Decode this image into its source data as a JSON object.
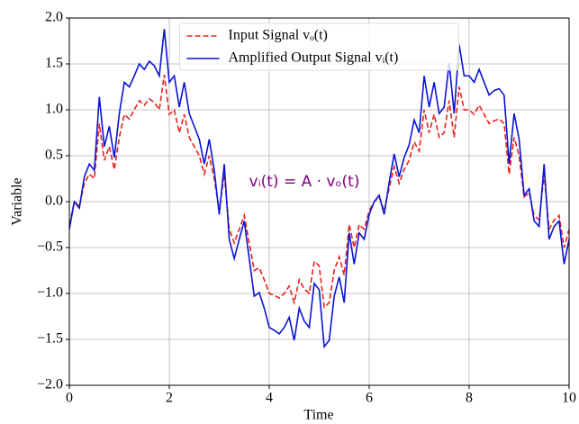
{
  "chart_data": {
    "type": "line",
    "xlabel": "Time",
    "ylabel": "Variable",
    "annotation": "vᵢ(t) = A · vₒ(t)",
    "annotation_color": "#800080",
    "x": [
      0,
      0.1,
      0.2,
      0.3,
      0.4,
      0.5,
      0.6,
      0.7,
      0.8,
      0.9,
      1,
      1.1,
      1.2,
      1.3,
      1.4,
      1.5,
      1.6,
      1.7,
      1.8,
      1.9,
      2,
      2.1,
      2.2,
      2.3,
      2.4,
      2.5,
      2.6,
      2.7,
      2.8,
      2.9,
      3,
      3.1,
      3.2,
      3.3,
      3.4,
      3.5,
      3.6,
      3.7,
      3.8,
      3.9,
      4,
      4.1,
      4.2,
      4.3,
      4.4,
      4.5,
      4.6,
      4.7,
      4.8,
      4.9,
      5,
      5.1,
      5.2,
      5.3,
      5.4,
      5.5,
      5.6,
      5.7,
      5.8,
      5.9,
      6,
      6.1,
      6.2,
      6.3,
      6.4,
      6.5,
      6.6,
      6.7,
      6.8,
      6.9,
      7,
      7.1,
      7.2,
      7.3,
      7.4,
      7.5,
      7.6,
      7.7,
      7.8,
      7.9,
      8,
      8.1,
      8.2,
      8.3,
      8.4,
      8.5,
      8.6,
      8.7,
      8.8,
      8.9,
      9,
      9.1,
      9.2,
      9.3,
      9.4,
      9.5,
      9.6,
      9.7,
      9.8,
      9.9,
      10
    ],
    "series": [
      {
        "name": "Input Signal vₒ(t)",
        "color": "#e8221b",
        "dash": "dashed",
        "values": [
          -0.25,
          0,
          -0.05,
          0.2,
          0.3,
          0.25,
          0.85,
          0.45,
          0.6,
          0.35,
          0.7,
          0.95,
          0.9,
          1,
          1.1,
          1.05,
          1.12,
          1.08,
          1,
          1.38,
          0.95,
          1,
          0.75,
          0.95,
          0.7,
          0.6,
          0.5,
          0.3,
          0.5,
          0.25,
          -0.1,
          0.3,
          -0.3,
          -0.45,
          -0.3,
          -0.15,
          -0.45,
          -0.75,
          -0.72,
          -0.85,
          -1,
          -1.02,
          -1.05,
          -1,
          -0.92,
          -1.1,
          -0.85,
          -0.95,
          -1,
          -0.65,
          -0.7,
          -1.15,
          -1.1,
          -0.75,
          -0.6,
          -0.8,
          -0.25,
          -0.5,
          -0.25,
          -0.3,
          -0.1,
          0,
          0.05,
          -0.1,
          0.15,
          0.38,
          0.2,
          0.35,
          0.45,
          0.65,
          0.55,
          1,
          0.75,
          0.95,
          0.7,
          0.75,
          1.1,
          0.7,
          1.25,
          1,
          1,
          0.95,
          1.05,
          0.95,
          0.85,
          0.88,
          0.9,
          0.85,
          0.3,
          0.7,
          0.5,
          0.05,
          0.1,
          -0.15,
          -0.2,
          0.3,
          -0.3,
          -0.2,
          -0.15,
          -0.5,
          -0.3
        ]
      },
      {
        "name": "Amplified Output Signal vᵢ(t)",
        "color": "#0a14d6",
        "dash": "solid",
        "values": [
          -0.3,
          0,
          -0.07,
          0.27,
          0.41,
          0.34,
          1.14,
          0.6,
          0.82,
          0.48,
          0.96,
          1.3,
          1.25,
          1.37,
          1.5,
          1.44,
          1.53,
          1.48,
          1.37,
          1.88,
          1.3,
          1.37,
          1.03,
          1.3,
          0.96,
          0.82,
          0.68,
          0.41,
          0.68,
          0.34,
          -0.14,
          0.41,
          -0.41,
          -0.62,
          -0.41,
          -0.21,
          -0.62,
          -1.03,
          -0.99,
          -1.16,
          -1.37,
          -1.4,
          -1.44,
          -1.37,
          -1.26,
          -1.51,
          -1.16,
          -1.3,
          -1.37,
          -0.89,
          -0.96,
          -1.58,
          -1.51,
          -1.03,
          -0.82,
          -1.1,
          -0.34,
          -0.68,
          -0.34,
          -0.41,
          -0.14,
          0,
          0.07,
          -0.14,
          0.21,
          0.52,
          0.27,
          0.48,
          0.62,
          0.89,
          0.75,
          1.37,
          1.03,
          1.3,
          0.96,
          1.03,
          1.51,
          0.96,
          1.71,
          1.37,
          1.37,
          1.3,
          1.44,
          1.3,
          1.16,
          1.21,
          1.23,
          1.16,
          0.41,
          0.96,
          0.68,
          0.07,
          0.14,
          -0.21,
          -0.27,
          0.41,
          -0.41,
          -0.27,
          -0.21,
          -0.68,
          -0.41
        ]
      }
    ],
    "xlim": [
      0,
      10
    ],
    "xticks": [
      0,
      2,
      4,
      6,
      8,
      10
    ],
    "ylim": [
      -2,
      2
    ],
    "yticks": [
      {
        "value": -2,
        "label": "−2.0"
      },
      {
        "value": -1.5,
        "label": "−1.5"
      },
      {
        "value": -1,
        "label": "−1.0"
      },
      {
        "value": -0.5,
        "label": "−0.5"
      },
      {
        "value": 0,
        "label": "0.0"
      },
      {
        "value": 0.5,
        "label": "0.5"
      },
      {
        "value": 1,
        "label": "1.0"
      },
      {
        "value": 1.5,
        "label": "1.5"
      },
      {
        "value": 2,
        "label": "2.0"
      }
    ],
    "grid": true,
    "legend": "upper center"
  }
}
